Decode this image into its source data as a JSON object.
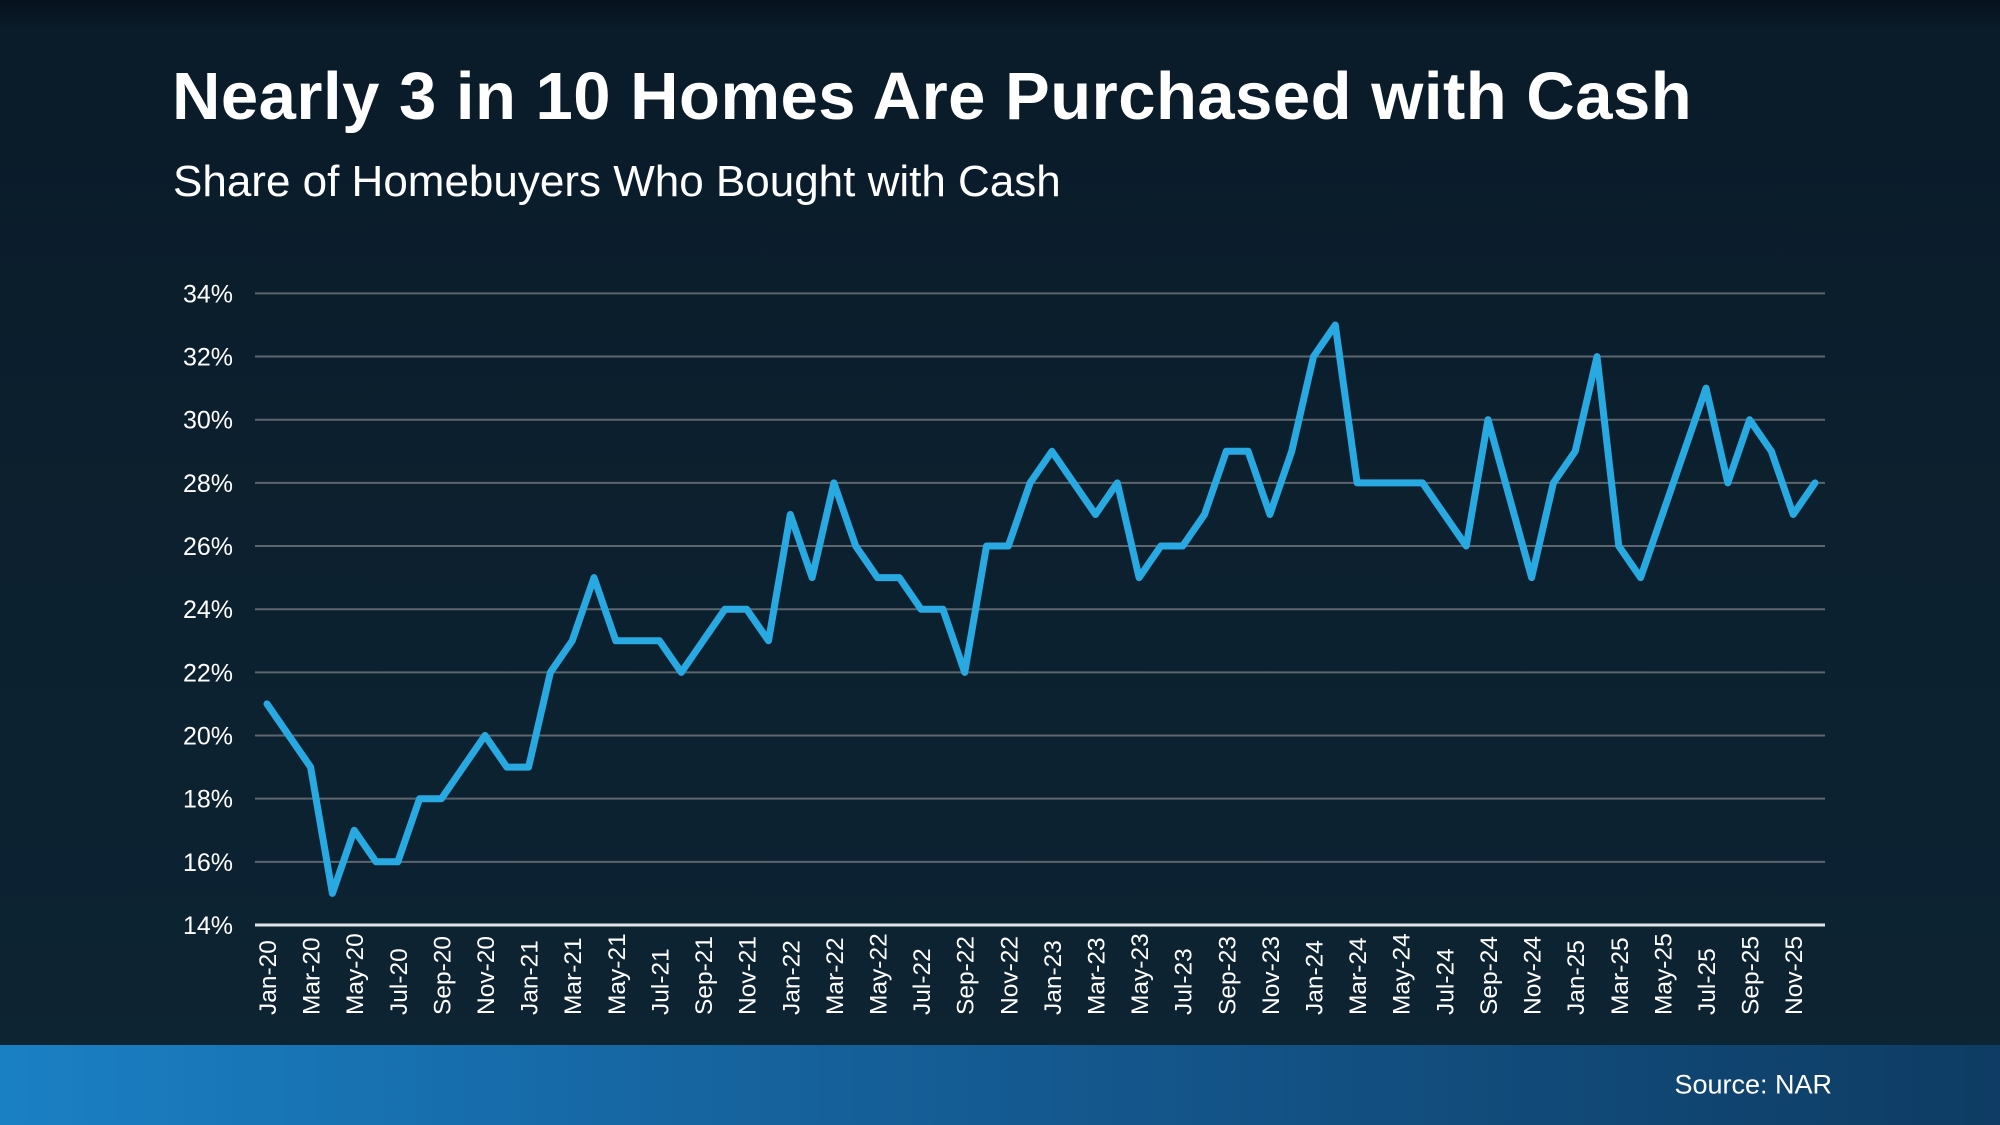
{
  "page": {
    "title": "Nearly 3 in 10 Homes Are Purchased with Cash",
    "subtitle": "Share of Homebuyers Who Bought with Cash"
  },
  "footer": {
    "source": "Source: NAR"
  },
  "chart_data": {
    "type": "line",
    "title": "Nearly 3 in 10 Homes Are Purchased with Cash",
    "subtitle": "Share of Homebuyers Who Bought with Cash",
    "xlabel": "",
    "ylabel": "",
    "x": [
      "Jan-20",
      "Feb-20",
      "Mar-20",
      "Apr-20",
      "May-20",
      "Jun-20",
      "Jul-20",
      "Aug-20",
      "Sep-20",
      "Oct-20",
      "Nov-20",
      "Dec-20",
      "Jan-21",
      "Feb-21",
      "Mar-21",
      "Apr-21",
      "May-21",
      "Jun-21",
      "Jul-21",
      "Aug-21",
      "Sep-21",
      "Oct-21",
      "Nov-21",
      "Dec-21",
      "Jan-22",
      "Feb-22",
      "Mar-22",
      "Apr-22",
      "May-22",
      "Jun-22",
      "Jul-22",
      "Aug-22",
      "Sep-22",
      "Oct-22",
      "Nov-22",
      "Dec-22",
      "Jan-23",
      "Feb-23",
      "Mar-23",
      "Apr-23",
      "May-23",
      "Jun-23",
      "Jul-23",
      "Aug-23",
      "Sep-23",
      "Oct-23",
      "Nov-23",
      "Dec-23",
      "Jan-24",
      "Feb-24",
      "Mar-24",
      "Apr-24",
      "May-24",
      "Jun-24",
      "Jul-24",
      "Aug-24",
      "Sep-24",
      "Oct-24",
      "Nov-24",
      "Dec-24",
      "Jan-25",
      "Feb-25",
      "Mar-25",
      "Apr-25",
      "May-25",
      "Jun-25",
      "Jul-25",
      "Aug-25",
      "Sep-25",
      "Oct-25",
      "Nov-25",
      "Dec-25"
    ],
    "values": [
      21,
      20,
      19,
      15,
      17,
      16,
      16,
      18,
      18,
      19,
      20,
      19,
      19,
      22,
      23,
      25,
      23,
      23,
      23,
      22,
      23,
      24,
      24,
      23,
      27,
      25,
      28,
      26,
      25,
      25,
      24,
      24,
      22,
      26,
      26,
      28,
      29,
      28,
      27,
      28,
      25,
      26,
      26,
      27,
      29,
      29,
      27,
      29,
      32,
      33,
      28,
      28,
      28,
      28,
      27,
      26,
      30,
      27.5,
      25,
      28,
      29,
      32,
      26,
      25,
      27,
      29,
      31,
      28,
      30,
      29,
      27,
      28
    ],
    "ylim": [
      14,
      34
    ],
    "ytick_step": 2,
    "ytick_suffix": "%",
    "x_tick_every": 2,
    "grid": true,
    "legend_position": "none",
    "line_color": "#29a9e1",
    "grid_color": "#5d656e",
    "axis_color": "#e2e5e8",
    "label_color": "#ffffff"
  }
}
